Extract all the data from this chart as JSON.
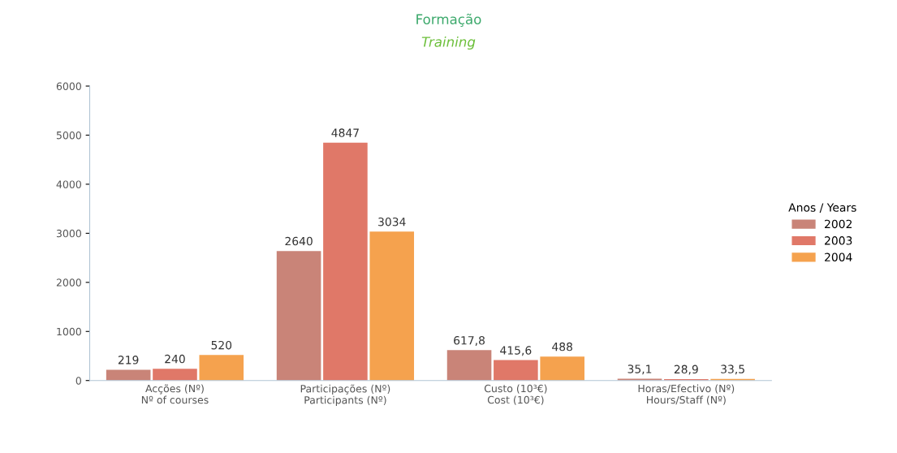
{
  "chart_data": {
    "type": "bar",
    "title": "Formação",
    "subtitle": "Training",
    "categories": [
      "Acções (Nº)\nNº of courses",
      "Participações (Nº)\nParticipants (Nº)",
      "Custo (10³€)\nCost (10³€)",
      "Horas/Efectivo (Nº)\nHours/Staff (Nº)"
    ],
    "series": [
      {
        "name": "2002",
        "color": "#c98478",
        "values": [
          219,
          2640,
          617.8,
          35.1
        ],
        "value_labels": [
          "219",
          "2640",
          "617,8",
          "35,1"
        ]
      },
      {
        "name": "2003",
        "color": "#e07868",
        "values": [
          240,
          4847,
          415.6,
          28.9
        ],
        "value_labels": [
          "240",
          "4847",
          "415,6",
          "28,9"
        ]
      },
      {
        "name": "2004",
        "color": "#f5a24e",
        "values": [
          520,
          3034,
          488,
          33.5
        ],
        "value_labels": [
          "520",
          "3034",
          "488",
          "33,5"
        ]
      }
    ],
    "legend_title": "Anos / Years",
    "legend": "right",
    "ylim": [
      0,
      6000
    ],
    "yticks": [
      0,
      1000,
      2000,
      3000,
      4000,
      5000,
      6000
    ],
    "grid": false
  }
}
